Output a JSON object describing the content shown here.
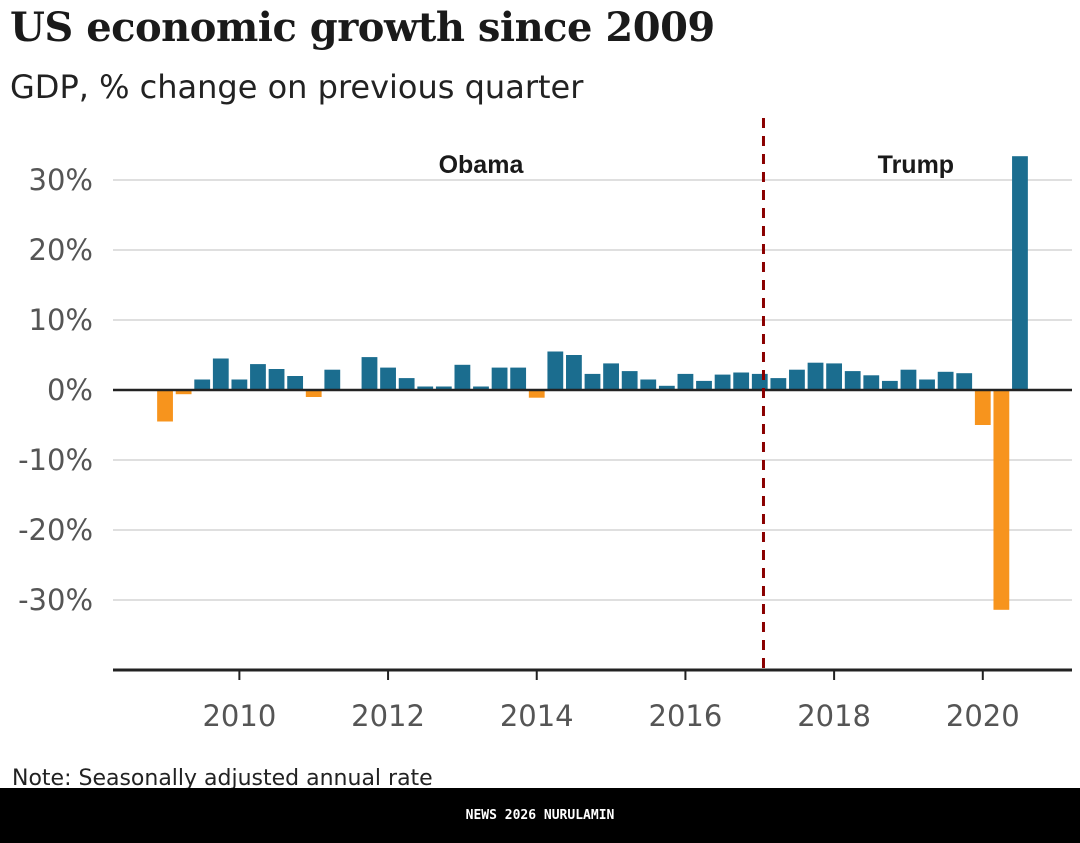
{
  "title": "US economic growth since 2009",
  "subtitle": "GDP, % change on previous quarter",
  "note": "Note: Seasonally adjusted annual rate",
  "footer": "NEWS 2026 NURULAMIN",
  "chart_data": {
    "type": "bar",
    "title": "US economic growth since 2009",
    "subtitle": "GDP, % change on previous quarter",
    "xlabel": "",
    "ylabel": "",
    "ylim": [
      -40,
      35
    ],
    "yticks": [
      -30,
      -20,
      -10,
      0,
      10,
      20,
      30
    ],
    "ytick_labels": [
      "-30%",
      "-20%",
      "-10%",
      "0%",
      "10%",
      "20%",
      "30%"
    ],
    "xlim": [
      2008.3,
      2021.2
    ],
    "xticks": [
      2010,
      2012,
      2014,
      2016,
      2018,
      2020
    ],
    "xtick_labels": [
      "2010",
      "2012",
      "2014",
      "2016",
      "2018",
      "2020"
    ],
    "grid": true,
    "colors": {
      "positive": "#1b6d8f",
      "negative": "#f7941d",
      "divider": "#8b0000",
      "grid": "#cccccc",
      "axis": "#222222"
    },
    "x": [
      2009.0,
      2009.25,
      2009.5,
      2009.75,
      2010.0,
      2010.25,
      2010.5,
      2010.75,
      2011.0,
      2011.25,
      2011.5,
      2011.75,
      2012.0,
      2012.25,
      2012.5,
      2012.75,
      2013.0,
      2013.25,
      2013.5,
      2013.75,
      2014.0,
      2014.25,
      2014.5,
      2014.75,
      2015.0,
      2015.25,
      2015.5,
      2015.75,
      2016.0,
      2016.25,
      2016.5,
      2016.75,
      2017.0,
      2017.25,
      2017.5,
      2017.75,
      2018.0,
      2018.25,
      2018.5,
      2018.75,
      2019.0,
      2019.25,
      2019.5,
      2019.75,
      2020.0,
      2020.25,
      2020.5
    ],
    "values": [
      -4.5,
      -0.6,
      1.5,
      4.5,
      1.5,
      3.7,
      3.0,
      2.0,
      -1.0,
      2.9,
      -0.1,
      4.7,
      3.2,
      1.7,
      0.5,
      0.5,
      3.6,
      0.5,
      3.2,
      3.2,
      -1.1,
      5.5,
      5.0,
      2.3,
      3.8,
      2.7,
      1.5,
      0.6,
      2.3,
      1.3,
      2.2,
      2.5,
      2.3,
      1.7,
      2.9,
      3.9,
      3.8,
      2.7,
      2.1,
      1.3,
      2.9,
      1.5,
      2.6,
      2.4,
      -5.0,
      -31.4,
      33.4
    ],
    "divider_x": 2017.05,
    "annotations": [
      {
        "text": "Obama",
        "x": 2013.25,
        "y": 32
      },
      {
        "text": "Trump",
        "x": 2019.1,
        "y": 32
      }
    ]
  }
}
